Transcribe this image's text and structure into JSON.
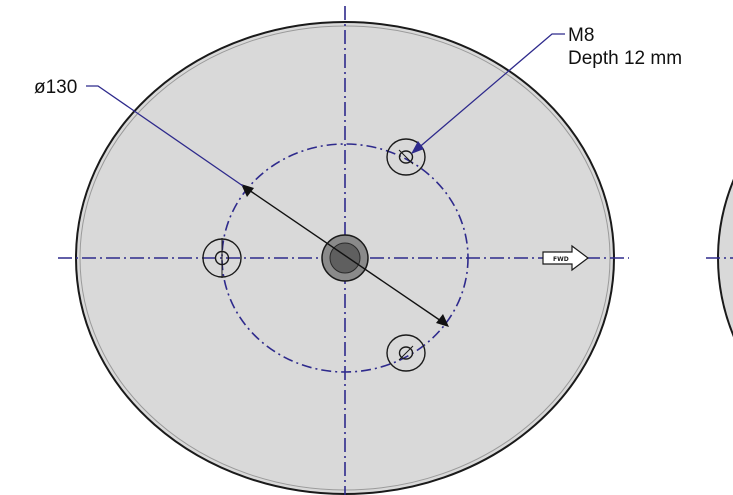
{
  "dimension": {
    "diameter_label": "ø130"
  },
  "thread_callout": {
    "thread": "M8",
    "depth": "Depth 12 mm"
  },
  "direction_marker": {
    "text": "FWD"
  },
  "colors": {
    "plate_fill": "#d9d9d9",
    "plate_outline": "#1a1a1a",
    "centerline": "#2e2a8c",
    "leader_line": "#2e2a8c",
    "dimension_arrow": "#111111",
    "hub": "#8a8a8a"
  }
}
